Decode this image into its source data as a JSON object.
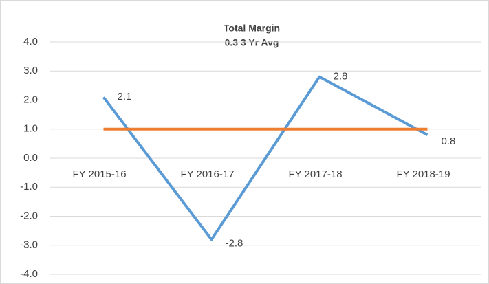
{
  "chart_data": {
    "type": "line",
    "title": "Total Margin",
    "subtitle": "0.3 3 Yr Avg",
    "categories": [
      "FY 2015-16",
      "FY 2016-17",
      "FY 2017-18",
      "FY 2018-19"
    ],
    "series": [
      {
        "color": "#5b9bd5",
        "values": [
          2.1,
          -2.8,
          2.8,
          0.8
        ]
      },
      {
        "color": "#ed7d31",
        "values": [
          1.0,
          1.0,
          1.0,
          1.0
        ]
      }
    ],
    "ylim": [
      -4,
      4
    ],
    "yticks": [
      {
        "value": 4,
        "label": "4.0"
      },
      {
        "value": 3,
        "label": "3.0"
      },
      {
        "value": 2,
        "label": "2.0"
      },
      {
        "value": 1,
        "label": "1.0"
      },
      {
        "value": 0,
        "label": "0.0"
      },
      {
        "value": -1,
        "label": "-1.0"
      },
      {
        "value": -2,
        "label": "-2.0"
      },
      {
        "value": -3,
        "label": "-3.0"
      },
      {
        "value": -4,
        "label": "-4.0"
      }
    ],
    "grid": true
  }
}
